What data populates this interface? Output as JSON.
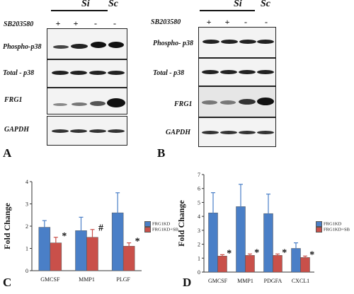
{
  "panel_a": {
    "letter": "A",
    "group_si": "Si",
    "group_sc": "Sc",
    "treatment_label": "SB203580",
    "signs": [
      "+",
      "+",
      "-",
      "-"
    ],
    "rows": [
      "Phospho-p38",
      "Total - p38",
      "FRG1",
      "GAPDH"
    ]
  },
  "panel_b": {
    "letter": "B",
    "group_si": "Si",
    "group_sc": "Sc",
    "treatment_label": "SB203580",
    "signs": [
      "+",
      "+",
      "-",
      "-"
    ],
    "rows": [
      "Phospho- p38",
      "Total - p38",
      "FRG1",
      "GAPDH"
    ]
  },
  "panel_c": {
    "letter": "C"
  },
  "panel_d": {
    "letter": "D"
  },
  "colors": {
    "frg1kd": "#4a7fc7",
    "frg1kd_sb": "#c9504a"
  },
  "chart_data": [
    {
      "type": "bar",
      "categories": [
        "GMCSF",
        "MMP1",
        "PLGF"
      ],
      "ylabel": "Fold Change",
      "ylim": [
        0,
        4
      ],
      "yticks": [
        0,
        1,
        2,
        3,
        4
      ],
      "series": [
        {
          "name": "FRG1KD",
          "values": [
            1.95,
            1.8,
            2.6
          ],
          "errors": [
            0.3,
            0.6,
            0.9
          ]
        },
        {
          "name": "FRG1KD+SB",
          "values": [
            1.25,
            1.5,
            1.1
          ],
          "errors": [
            0.25,
            0.35,
            0.15
          ]
        }
      ],
      "annotations": [
        "*",
        "#",
        "*"
      ],
      "legend": "right"
    },
    {
      "type": "bar",
      "categories": [
        "GMCSF",
        "MMP1",
        "PDGFA",
        "CXCL1"
      ],
      "ylabel": "Fold Change",
      "ylim": [
        0,
        7
      ],
      "yticks": [
        0,
        1,
        2,
        3,
        4,
        5,
        6,
        7
      ],
      "series": [
        {
          "name": "FRG1KD",
          "values": [
            4.25,
            4.7,
            4.2,
            1.7
          ],
          "errors": [
            1.45,
            1.6,
            1.4,
            0.4
          ]
        },
        {
          "name": "FRG1KD+SB",
          "values": [
            1.15,
            1.2,
            1.2,
            1.05
          ],
          "errors": [
            0.1,
            0.1,
            0.1,
            0.1
          ]
        }
      ],
      "annotations": [
        "*",
        "*",
        "*",
        "*"
      ],
      "legend": "right"
    }
  ]
}
